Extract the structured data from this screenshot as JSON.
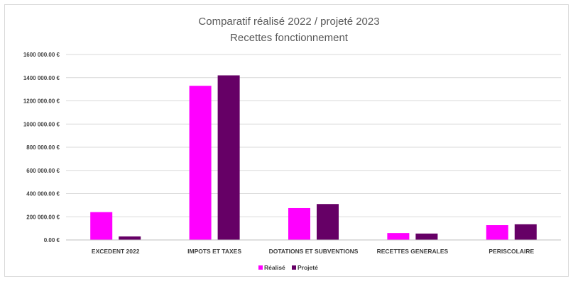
{
  "chart_data": {
    "type": "bar",
    "title": "Comparatif réalisé 2022 / projeté 2023",
    "subtitle": "Recettes fonctionnement",
    "categories": [
      "EXCEDENT 2022",
      "IMPOTS ET TAXES",
      "DOTATIONS ET SUBVENTIONS",
      "RECETTES GENERALES",
      "PERISCOLAIRE"
    ],
    "series": [
      {
        "name": "Réalisé",
        "color": "#ff00ff",
        "values": [
          240000,
          1330000,
          275000,
          60000,
          128000
        ]
      },
      {
        "name": "Projeté",
        "color": "#660066",
        "values": [
          30000,
          1420000,
          310000,
          55000,
          135000
        ]
      }
    ],
    "yticks": [
      "0.00 €",
      "200 000.00 €",
      "400 000.00 €",
      "600 000.00 €",
      "800 000.00 €",
      "1000 000.00 €",
      "1200 000.00 €",
      "1400 000.00 €",
      "1600 000.00 €"
    ],
    "ylim": [
      0,
      1600000
    ],
    "ystep": 200000,
    "grid": true,
    "legend_position": "bottom",
    "gridline_color": "#d9d9d9"
  }
}
